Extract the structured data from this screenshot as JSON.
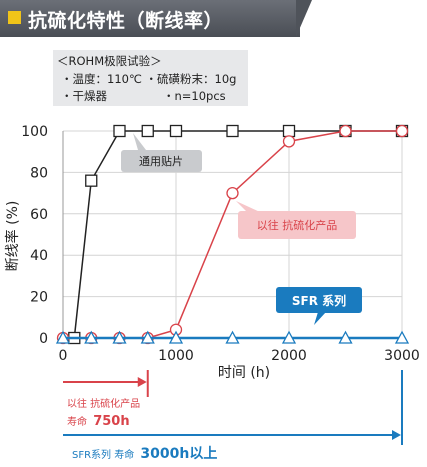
{
  "header": {
    "title": "抗硫化特性（断线率）"
  },
  "conditions": {
    "title": "＜ROHM极限试验＞",
    "line1": "・温度：110℃ ・硫磺粉末：10g",
    "line2a": "・干燥器",
    "line2b": "・n=10pcs"
  },
  "chart_data": {
    "type": "line",
    "xlabel": "时间 (h)",
    "ylabel": "断线率 (%)",
    "xlim": [
      0,
      3000
    ],
    "ylim": [
      0,
      100
    ],
    "x_ticks": [
      "0",
      "1000",
      "2000",
      "3000"
    ],
    "y_ticks": [
      "0",
      "20",
      "40",
      "60",
      "80",
      "100"
    ],
    "series": [
      {
        "name": "通用贴片",
        "color": "#222222",
        "marker": "square",
        "x": [
          100,
          250,
          500,
          750,
          1000,
          1500,
          2000,
          2500,
          3000
        ],
        "y": [
          0,
          76,
          100,
          100,
          100,
          100,
          100,
          100,
          100
        ]
      },
      {
        "name": "以往 抗硫化产品",
        "color": "#d9434a",
        "marker": "circle",
        "x": [
          0,
          250,
          500,
          750,
          1000,
          1500,
          2000,
          2500,
          3000
        ],
        "y": [
          0,
          0,
          0,
          0,
          4,
          70,
          95,
          100,
          100
        ]
      },
      {
        "name": "SFR 系列",
        "color": "#1a7bbf",
        "marker": "triangle",
        "x": [
          0,
          250,
          500,
          750,
          1000,
          1500,
          2000,
          2500,
          3000
        ],
        "y": [
          0,
          0,
          0,
          0,
          0,
          0,
          0,
          0,
          0
        ]
      }
    ]
  },
  "annotations": {
    "prev_lifetime_line1": "以往 抗硫化产品",
    "prev_lifetime_line2": "寿命",
    "prev_lifetime_value": "750h",
    "sfr_lifetime_prefix": "SFR系列 寿命",
    "sfr_lifetime_value": "3000h以上",
    "prev_lifetime_hours": 750,
    "sfr_lifetime_hours": 3000
  },
  "colors": {
    "general": "#222222",
    "previous": "#d9434a",
    "sfr": "#1a7bbf"
  }
}
